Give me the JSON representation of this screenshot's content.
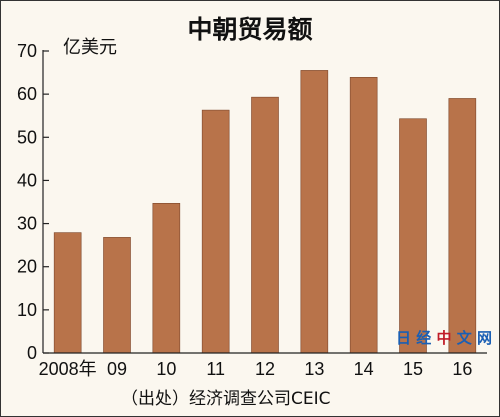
{
  "chart_data": {
    "type": "bar",
    "title": "中朝贸易额",
    "unit": "亿美元",
    "categories": [
      "2008年",
      "09",
      "10",
      "11",
      "12",
      "13",
      "14",
      "15",
      "16"
    ],
    "values": [
      27.9,
      26.8,
      34.7,
      56.3,
      59.3,
      65.5,
      63.9,
      54.3,
      59.0
    ],
    "yticks": [
      0,
      10,
      20,
      30,
      40,
      50,
      60,
      70
    ],
    "ylim": [
      0,
      70
    ],
    "grid": false,
    "bar_color": "#b8734a",
    "source": "（出处）经济调查公司CEIC"
  },
  "watermark": {
    "parts": [
      "日",
      "经",
      "中",
      "文",
      "网"
    ],
    "colors": [
      "#1a5fb4",
      "#1a5fb4",
      "#c01c28",
      "#1a5fb4",
      "#1a5fb4"
    ]
  }
}
